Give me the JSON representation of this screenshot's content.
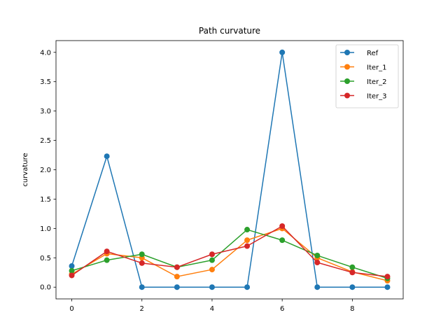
{
  "chart_data": {
    "type": "line",
    "title": "Path curvature",
    "xlabel": "",
    "ylabel": "curvature",
    "xlim": [
      -0.45,
      9.45
    ],
    "ylim": [
      -0.2,
      4.2
    ],
    "xticks": [
      0,
      2,
      4,
      6,
      8
    ],
    "yticks": [
      0.0,
      0.5,
      1.0,
      1.5,
      2.0,
      2.5,
      3.0,
      3.5,
      4.0
    ],
    "ytick_labels": [
      "0.0",
      "0.5",
      "1.0",
      "1.5",
      "2.0",
      "2.5",
      "3.0",
      "3.5",
      "4.0"
    ],
    "grid": false,
    "legend_position": "top-right",
    "x": [
      0,
      1,
      2,
      3,
      4,
      5,
      6,
      7,
      8,
      9
    ],
    "series": [
      {
        "name": "Ref",
        "color": "#1f77b4",
        "values": [
          0.36,
          2.23,
          0.0,
          0.0,
          0.0,
          0.0,
          4.0,
          0.0,
          0.0,
          0.0
        ]
      },
      {
        "name": "Iter_1",
        "color": "#ff7f0e",
        "values": [
          0.22,
          0.57,
          0.5,
          0.18,
          0.3,
          0.8,
          1.0,
          0.5,
          0.26,
          0.11
        ]
      },
      {
        "name": "Iter_2",
        "color": "#2ca02c",
        "values": [
          0.28,
          0.46,
          0.56,
          0.34,
          0.46,
          0.98,
          0.8,
          0.54,
          0.34,
          0.15
        ]
      },
      {
        "name": "Iter_3",
        "color": "#d62728",
        "values": [
          0.2,
          0.61,
          0.41,
          0.34,
          0.56,
          0.7,
          1.04,
          0.42,
          0.25,
          0.18
        ]
      }
    ]
  }
}
